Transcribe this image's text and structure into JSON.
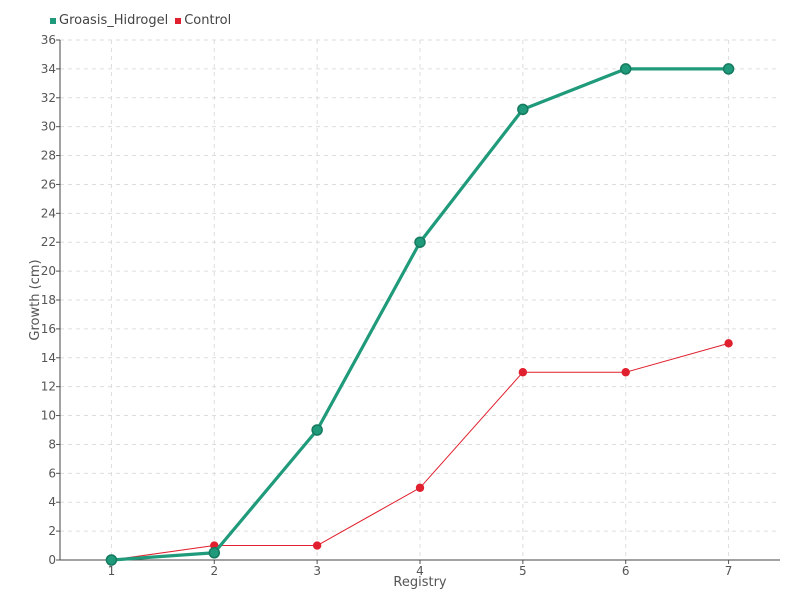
{
  "chart_data": {
    "type": "line",
    "xlabel": "Registry",
    "ylabel": "Growth (cm)",
    "x": [
      1,
      2,
      3,
      4,
      5,
      6,
      7
    ],
    "ylim": [
      0,
      36
    ],
    "yticks": [
      0,
      2,
      4,
      6,
      8,
      10,
      12,
      14,
      16,
      18,
      20,
      22,
      24,
      26,
      28,
      30,
      32,
      34,
      36
    ],
    "grid": true,
    "legend_position": "top-left",
    "series": [
      {
        "name": "Groasis_Hidrogel",
        "color": "#1f9a7a",
        "values": [
          0,
          0.5,
          9,
          22,
          31.2,
          34,
          34
        ]
      },
      {
        "name": "Control",
        "color": "#e0202e",
        "values": [
          0,
          1,
          1,
          5,
          13,
          13,
          15
        ]
      }
    ]
  }
}
